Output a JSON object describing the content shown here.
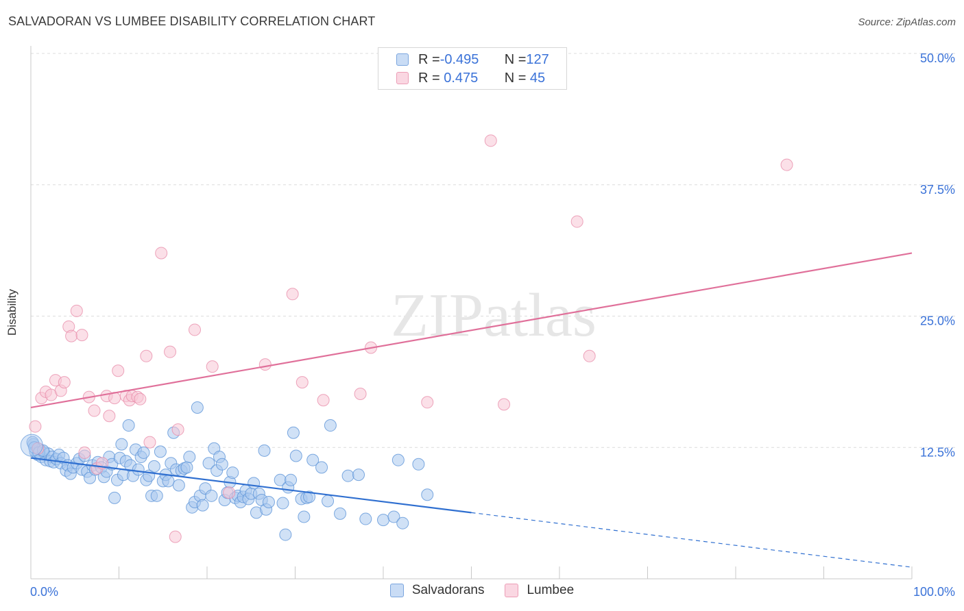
{
  "title": "SALVADORAN VS LUMBEE DISABILITY CORRELATION CHART",
  "source": "Source: ZipAtlas.com",
  "legend_top": [
    {
      "r_label": "R = ",
      "r_value": "-0.495",
      "n_label": "N = ",
      "n_value": "127",
      "color": "#a9c8ef",
      "border": "#6f9fdc"
    },
    {
      "r_label": "R = ",
      "r_value": " 0.475",
      "n_label": "N = ",
      "n_value": " 45",
      "color": "#f7c6d6",
      "border": "#e88fab"
    }
  ],
  "chart_data": {
    "type": "scatter",
    "title": "SALVADORAN VS LUMBEE DISABILITY CORRELATION CHART",
    "xlabel": "",
    "ylabel": "Disability",
    "xlim": [
      0,
      100
    ],
    "ylim": [
      0,
      50
    ],
    "x_tick_labels": [
      "0.0%",
      "100.0%"
    ],
    "y_ticks": [
      12.5,
      25.0,
      37.5,
      50.0
    ],
    "y_tick_labels": [
      "12.5%",
      "25.0%",
      "37.5%",
      "50.0%"
    ],
    "grid": true,
    "legend_position": "bottom",
    "watermark": "ZIPatlas",
    "series": [
      {
        "name": "Salvadorans",
        "color": "#a9c8ef",
        "edge": "#5e95d8",
        "trend_color": "#2f6fd0",
        "trend": {
          "x0": 0,
          "y0": 11.5,
          "x1": 50,
          "y1": 6.3,
          "dashed_to_x": 100,
          "dashed_to_y": 1.1
        },
        "points": [
          [
            0.3,
            12.8
          ],
          [
            0.5,
            12.1
          ],
          [
            0.8,
            11.8
          ],
          [
            1.0,
            12.3
          ],
          [
            1.2,
            11.6
          ],
          [
            1.5,
            12.0
          ],
          [
            1.7,
            11.3
          ],
          [
            2.0,
            11.9
          ],
          [
            2.2,
            11.2
          ],
          [
            2.4,
            11.6
          ],
          [
            2.6,
            11.1
          ],
          [
            2.9,
            11.4
          ],
          [
            3.2,
            11.8
          ],
          [
            3.4,
            11.0
          ],
          [
            3.7,
            11.5
          ],
          [
            4.0,
            10.3
          ],
          [
            4.2,
            10.8
          ],
          [
            4.5,
            10.0
          ],
          [
            4.8,
            10.6
          ],
          [
            5.2,
            11.0
          ],
          [
            5.5,
            11.4
          ],
          [
            5.8,
            10.4
          ],
          [
            6.1,
            11.7
          ],
          [
            6.4,
            10.2
          ],
          [
            6.7,
            9.6
          ],
          [
            7.0,
            10.8
          ],
          [
            7.3,
            10.4
          ],
          [
            7.6,
            11.1
          ],
          [
            8.0,
            10.6
          ],
          [
            8.3,
            9.7
          ],
          [
            8.6,
            10.2
          ],
          [
            8.9,
            11.6
          ],
          [
            9.2,
            10.9
          ],
          [
            9.5,
            7.7
          ],
          [
            9.8,
            9.4
          ],
          [
            10.1,
            11.5
          ],
          [
            10.3,
            12.8
          ],
          [
            10.5,
            9.9
          ],
          [
            10.8,
            11.2
          ],
          [
            11.1,
            14.6
          ],
          [
            11.3,
            10.8
          ],
          [
            11.6,
            9.8
          ],
          [
            11.9,
            12.3
          ],
          [
            12.2,
            10.4
          ],
          [
            12.5,
            11.6
          ],
          [
            12.8,
            12.0
          ],
          [
            13.1,
            9.4
          ],
          [
            13.4,
            9.8
          ],
          [
            13.7,
            7.9
          ],
          [
            14.0,
            10.7
          ],
          [
            14.3,
            7.9
          ],
          [
            14.7,
            12.1
          ],
          [
            15.0,
            9.3
          ],
          [
            15.3,
            9.9
          ],
          [
            15.6,
            9.3
          ],
          [
            15.9,
            11.0
          ],
          [
            16.2,
            13.9
          ],
          [
            16.5,
            10.4
          ],
          [
            16.8,
            8.9
          ],
          [
            17.1,
            10.3
          ],
          [
            17.4,
            10.5
          ],
          [
            17.7,
            10.6
          ],
          [
            18.0,
            11.6
          ],
          [
            18.3,
            6.8
          ],
          [
            18.6,
            7.3
          ],
          [
            18.9,
            16.3
          ],
          [
            19.2,
            7.9
          ],
          [
            19.5,
            7.0
          ],
          [
            19.8,
            8.6
          ],
          [
            20.2,
            11.0
          ],
          [
            20.5,
            7.9
          ],
          [
            20.8,
            12.4
          ],
          [
            21.1,
            10.3
          ],
          [
            21.4,
            11.6
          ],
          [
            21.7,
            10.9
          ],
          [
            22.0,
            7.5
          ],
          [
            22.3,
            8.2
          ],
          [
            22.6,
            9.2
          ],
          [
            22.9,
            10.1
          ],
          [
            23.2,
            7.7
          ],
          [
            23.5,
            7.9
          ],
          [
            23.8,
            7.3
          ],
          [
            24.1,
            7.8
          ],
          [
            24.4,
            8.4
          ],
          [
            24.7,
            7.6
          ],
          [
            25.0,
            8.1
          ],
          [
            25.3,
            9.1
          ],
          [
            25.6,
            6.3
          ],
          [
            25.9,
            8.1
          ],
          [
            26.2,
            7.5
          ],
          [
            26.5,
            12.2
          ],
          [
            26.7,
            6.6
          ],
          [
            27.0,
            7.3
          ],
          [
            28.3,
            9.4
          ],
          [
            28.6,
            7.2
          ],
          [
            28.9,
            4.2
          ],
          [
            29.2,
            8.7
          ],
          [
            29.5,
            9.4
          ],
          [
            29.8,
            13.9
          ],
          [
            30.1,
            11.7
          ],
          [
            30.7,
            7.6
          ],
          [
            31.0,
            5.9
          ],
          [
            31.3,
            7.7
          ],
          [
            31.6,
            7.8
          ],
          [
            32.0,
            11.3
          ],
          [
            33.0,
            10.6
          ],
          [
            33.7,
            7.4
          ],
          [
            34.0,
            14.6
          ],
          [
            35.1,
            6.2
          ],
          [
            36.0,
            9.8
          ],
          [
            37.2,
            9.9
          ],
          [
            38.0,
            5.7
          ],
          [
            40.0,
            5.6
          ],
          [
            41.2,
            5.9
          ],
          [
            41.7,
            11.3
          ],
          [
            42.2,
            5.3
          ],
          [
            44.0,
            10.9
          ],
          [
            45.0,
            8.0
          ],
          [
            0.2,
            13.0
          ],
          [
            0.4,
            12.5
          ],
          [
            0.9,
            12.0
          ],
          [
            1.4,
            12.2
          ]
        ]
      },
      {
        "name": "Lumbee",
        "color": "#f7c6d6",
        "edge": "#e88fab",
        "trend_color": "#e0709a",
        "trend": {
          "x0": 0,
          "y0": 16.3,
          "x1": 100,
          "y1": 31.0
        },
        "points": [
          [
            0.5,
            14.5
          ],
          [
            0.8,
            12.4
          ],
          [
            1.2,
            17.2
          ],
          [
            1.7,
            17.8
          ],
          [
            2.3,
            17.5
          ],
          [
            2.8,
            18.9
          ],
          [
            3.4,
            17.9
          ],
          [
            3.8,
            18.7
          ],
          [
            4.3,
            24.0
          ],
          [
            4.6,
            23.1
          ],
          [
            5.2,
            25.5
          ],
          [
            5.8,
            23.2
          ],
          [
            6.1,
            12.0
          ],
          [
            6.6,
            17.3
          ],
          [
            7.2,
            16.0
          ],
          [
            7.5,
            10.5
          ],
          [
            8.1,
            11.0
          ],
          [
            8.6,
            17.4
          ],
          [
            8.9,
            15.5
          ],
          [
            9.5,
            17.2
          ],
          [
            9.9,
            19.8
          ],
          [
            10.8,
            17.4
          ],
          [
            11.2,
            17.0
          ],
          [
            11.5,
            17.4
          ],
          [
            12.1,
            17.3
          ],
          [
            12.4,
            17.1
          ],
          [
            13.1,
            21.2
          ],
          [
            13.5,
            13.0
          ],
          [
            14.8,
            31.0
          ],
          [
            15.8,
            21.6
          ],
          [
            16.4,
            4.0
          ],
          [
            16.7,
            14.2
          ],
          [
            18.6,
            23.7
          ],
          [
            20.6,
            20.2
          ],
          [
            22.5,
            8.2
          ],
          [
            26.6,
            20.4
          ],
          [
            29.7,
            27.1
          ],
          [
            30.8,
            18.7
          ],
          [
            33.2,
            17.0
          ],
          [
            37.4,
            17.6
          ],
          [
            38.6,
            22.0
          ],
          [
            45.0,
            16.8
          ],
          [
            52.2,
            41.7
          ],
          [
            53.7,
            16.6
          ],
          [
            62.0,
            34.0
          ],
          [
            63.4,
            21.2
          ],
          [
            85.8,
            39.4
          ]
        ]
      }
    ]
  },
  "bottom_legend": [
    {
      "label": "Salvadorans",
      "color": "#a9c8ef",
      "border": "#6f9fdc"
    },
    {
      "label": "Lumbee",
      "color": "#f7c6d6",
      "border": "#e88fab"
    }
  ]
}
